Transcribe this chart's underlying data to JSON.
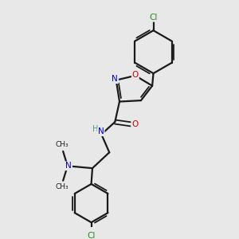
{
  "background_color": "#e8e8e8",
  "bond_color": "#1a1a1a",
  "nitrogen_color": "#0000cc",
  "oxygen_color": "#cc0000",
  "chlorine_color": "#228B22",
  "nh_color": "#4a9a8a",
  "figsize": [
    3.0,
    3.0
  ],
  "dpi": 100,
  "xlim": [
    0,
    10
  ],
  "ylim": [
    0,
    10
  ]
}
